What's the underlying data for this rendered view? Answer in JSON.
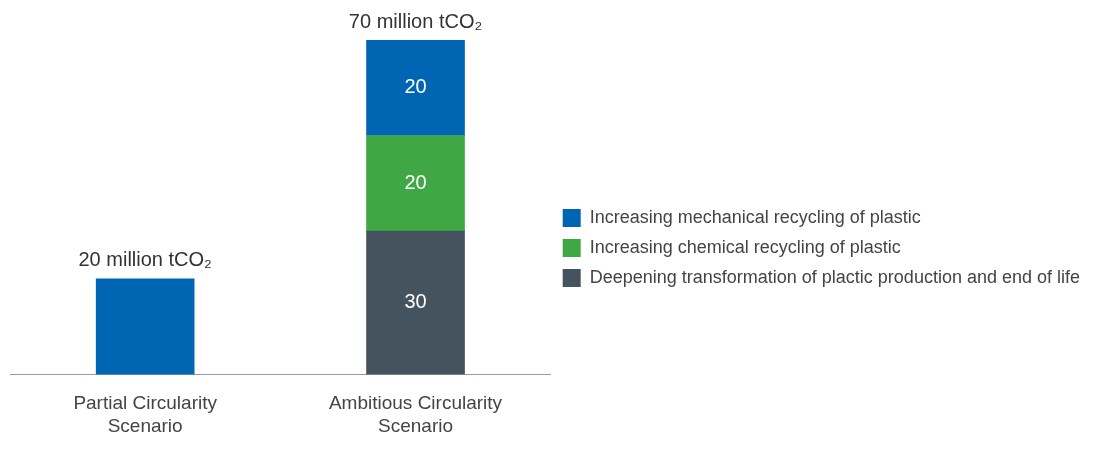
{
  "chart_data": {
    "type": "bar",
    "stacked": true,
    "legend": "right",
    "categories": [
      "Partial Circularity Scenario",
      "Ambitious Circularity Scenario"
    ],
    "series": [
      {
        "name": "Deepening transformation of plactic production and end of life",
        "color": "#44535e",
        "values": [
          null,
          30
        ],
        "value_labels": [
          null,
          "30"
        ]
      },
      {
        "name": "Increasing chemical recycling of plastic",
        "color": "#3fa844",
        "values": [
          null,
          20
        ],
        "value_labels": [
          null,
          "20"
        ]
      },
      {
        "name": "Increasing mechanical recycling of plastic",
        "color": "#0066b3",
        "values": [
          20,
          20
        ],
        "value_labels": [
          null,
          "20"
        ]
      }
    ],
    "totals": [
      "20 million tCO₂",
      "70 million tCO₂"
    ],
    "grid": false
  }
}
